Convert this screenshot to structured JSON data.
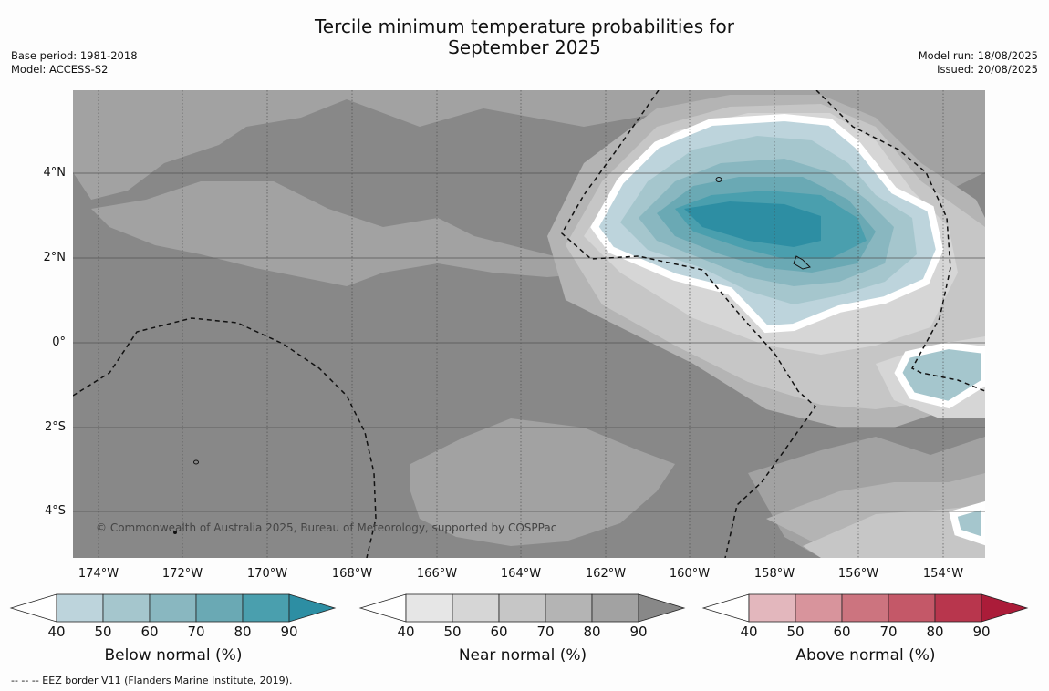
{
  "title_line1": "Tercile minimum temperature probabilities for",
  "title_line2": "September 2025",
  "base_period": "Base period: 1981-2018",
  "model": "Model: ACCESS-S2",
  "model_run": "Model run: 18/08/2025",
  "issued": "Issued: 20/08/2025",
  "copyright": "© Commonwealth of Australia 2025, Bureau of Meteorology, supported by COSPPac",
  "footer": "--  --  -- EEZ border V11 (Flanders Marine Institute, 2019).",
  "map": {
    "y_labels": [
      "4°N",
      "2°N",
      "0°",
      "2°S",
      "4°S"
    ],
    "x_labels": [
      "174°W",
      "172°W",
      "170°W",
      "168°W",
      "166°W",
      "164°W",
      "162°W",
      "160°W",
      "158°W",
      "156°W",
      "154°W"
    ]
  },
  "colorbars": [
    {
      "title": "Below normal (%)",
      "ticks": [
        "40",
        "50",
        "60",
        "70",
        "80",
        "90"
      ],
      "colors": [
        "#ffffff",
        "#bdd4dc",
        "#a5c6cd",
        "#89b7c0",
        "#6aa9b4",
        "#4a9fae",
        "#2d8ea3"
      ]
    },
    {
      "title": "Near normal (%)",
      "ticks": [
        "40",
        "50",
        "60",
        "70",
        "80",
        "90"
      ],
      "colors": [
        "#ffffff",
        "#e6e6e6",
        "#d6d6d6",
        "#c6c6c6",
        "#b4b4b4",
        "#a2a2a2",
        "#888888"
      ]
    },
    {
      "title": "Above normal (%)",
      "ticks": [
        "40",
        "50",
        "60",
        "70",
        "80",
        "90"
      ],
      "colors": [
        "#ffffff",
        "#e3b7bd",
        "#d8949c",
        "#cc747f",
        "#c45868",
        "#b8364d",
        "#ab1c39"
      ]
    }
  ]
}
